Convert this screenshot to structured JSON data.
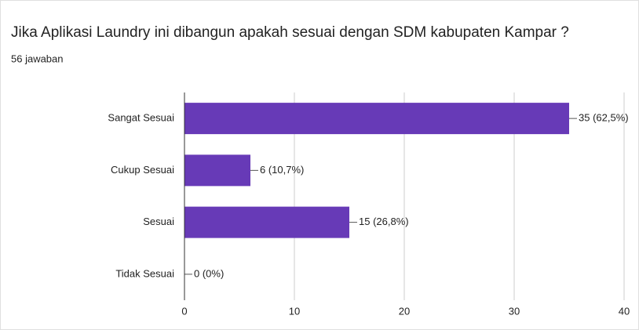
{
  "chart_data": {
    "type": "bar",
    "orientation": "horizontal",
    "title": "Jika Aplikasi Laundry ini dibangun apakah sesuai dengan SDM kabupaten Kampar ?",
    "subtitle": "56 jawaban",
    "categories": [
      "Sangat Sesuai",
      "Cukup Sesuai",
      "Sesuai",
      "Tidak Sesuai"
    ],
    "values": [
      35,
      6,
      15,
      0
    ],
    "value_labels": [
      "35 (62,5%)",
      "6 (10,7%)",
      "15 (26,8%)",
      "0 (0%)"
    ],
    "color": "#673ab7",
    "xlim": [
      0,
      40
    ],
    "xticks": [
      0,
      10,
      20,
      30,
      40
    ],
    "grid": true
  }
}
